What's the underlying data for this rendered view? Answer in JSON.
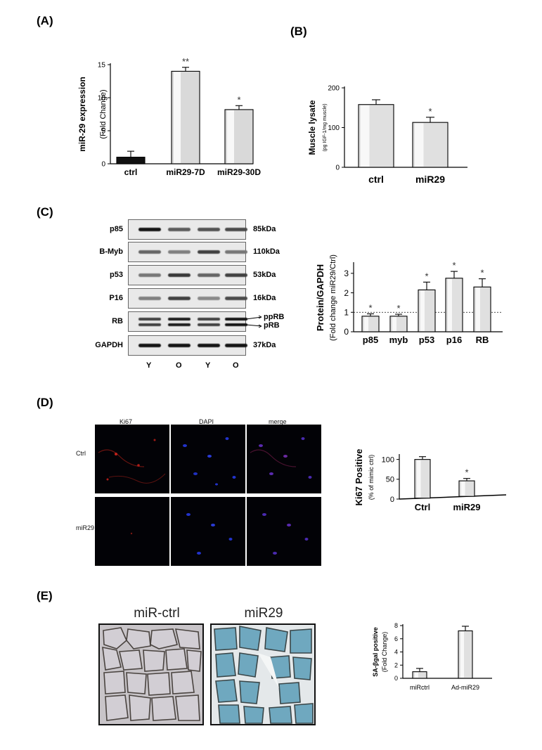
{
  "panels": {
    "A": "(A)",
    "B": "(B)",
    "C": "(C)",
    "D": "(D)",
    "E": "(E)"
  },
  "chart_data": [
    {
      "id": "A",
      "type": "bar",
      "categories": [
        "ctrl",
        "miR29-7D",
        "miR29-30D"
      ],
      "values": [
        1.0,
        14.0,
        8.2
      ],
      "errors": [
        0.9,
        0.6,
        0.6
      ],
      "significance": [
        "",
        "**",
        "*"
      ],
      "bar_colors": [
        "#111111",
        "#d9d9d9",
        "#d9d9d9"
      ],
      "ylabel": "miR-29 expression",
      "ylabel2": "(Fold Change)",
      "ylim": [
        0,
        15
      ],
      "yticks": [
        "0",
        "5",
        "10",
        "15"
      ]
    },
    {
      "id": "B",
      "type": "bar",
      "categories": [
        "ctrl",
        "miR29"
      ],
      "values": [
        158,
        113
      ],
      "errors": [
        12,
        13
      ],
      "significance": [
        "",
        "*"
      ],
      "ylabel": "Muscle lysate",
      "ylabel2": "(pg IGF-1/mg muscle)",
      "ylim": [
        0,
        200
      ],
      "yticks": [
        "0",
        "100",
        "200"
      ]
    },
    {
      "id": "C",
      "type": "bar",
      "categories": [
        "p85",
        "myb",
        "p53",
        "p16",
        "RB"
      ],
      "values": [
        0.8,
        0.8,
        2.15,
        2.75,
        2.3
      ],
      "errors": [
        0.12,
        0.1,
        0.4,
        0.35,
        0.42
      ],
      "significance": [
        "*",
        "*",
        "*",
        "*",
        "*"
      ],
      "reference_line": 1,
      "ylabel": "Protein/GAPDH",
      "ylabel2": "(Fold change miR29/Ctrl)",
      "ylim": [
        0,
        3.5
      ],
      "yticks": [
        "0",
        "1",
        "2",
        "3"
      ]
    },
    {
      "id": "D",
      "type": "bar",
      "categories": [
        "Ctrl",
        "miR29"
      ],
      "values": [
        100,
        46
      ],
      "errors": [
        7,
        6
      ],
      "significance": [
        "",
        "*"
      ],
      "ylabel": "Ki67 Positive",
      "ylabel2": "(% of mimic ctrl)",
      "ylim": [
        0,
        110
      ],
      "yticks": [
        "0",
        "50",
        "100"
      ]
    },
    {
      "id": "E",
      "type": "bar",
      "categories": [
        "miRctrl",
        "Ad-miR29"
      ],
      "values": [
        1.0,
        7.2
      ],
      "errors": [
        0.5,
        0.7
      ],
      "significance": [
        "",
        ""
      ],
      "ylabel": "SA-βgal positive",
      "ylabel2": "(Fold Change)",
      "ylim": [
        0,
        8
      ],
      "yticks": [
        "0",
        "2",
        "4",
        "6",
        "8"
      ]
    }
  ],
  "blot": {
    "proteins": [
      "p85",
      "B-Myb",
      "p53",
      "P16",
      "RB",
      "GAPDH"
    ],
    "sizes": [
      "85kDa",
      "110kDa",
      "53kDa",
      "16kDa",
      "",
      "37kDa"
    ],
    "rb_forms": [
      "ppRB",
      "pRB"
    ],
    "lanes": [
      "Y",
      "O",
      "Y",
      "O"
    ]
  },
  "microscopy": {
    "columns": [
      "Ki67",
      "DAPI",
      "merge"
    ],
    "rows": [
      "Ctrl",
      "miR29"
    ]
  },
  "staining": {
    "titles": [
      "miR-ctrl",
      "miR29"
    ]
  }
}
